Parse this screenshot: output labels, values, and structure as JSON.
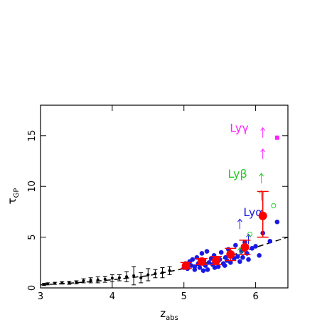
{
  "chart_data": {
    "type": "scatter",
    "xlabel": {
      "main": "z",
      "sub": "abs"
    },
    "ylabel": {
      "main": "τ",
      "sub": "GP"
    },
    "xlim": [
      3,
      6.45
    ],
    "ylim": [
      0,
      18
    ],
    "xticks": [
      3,
      4,
      5,
      6
    ],
    "yticks": [
      0,
      5,
      10,
      15
    ],
    "series": [
      {
        "marker": "line",
        "style": "dashed",
        "color": "#000000",
        "x": [
          3,
          3.5,
          4,
          4.5,
          5,
          5.5,
          6,
          6.45
        ],
        "values": [
          0.3,
          0.5,
          0.8,
          1.2,
          1.9,
          2.8,
          4.0,
          5.0
        ]
      },
      {
        "marker": "dot",
        "color": "#000000",
        "x": [
          3.05,
          3.1,
          3.2,
          3.3,
          3.4,
          3.5,
          3.6,
          3.7,
          3.8,
          3.9,
          4.0,
          4.1,
          4.2,
          4.3,
          4.4,
          4.5,
          4.6,
          4.7,
          4.8
        ],
        "values": [
          0.35,
          0.4,
          0.45,
          0.5,
          0.5,
          0.55,
          0.7,
          0.75,
          0.8,
          0.85,
          0.95,
          1.0,
          1.1,
          1.2,
          1.0,
          1.3,
          1.4,
          1.5,
          1.7
        ],
        "errors": [
          0.1,
          0.1,
          0.1,
          0.12,
          0.15,
          0.15,
          0.2,
          0.25,
          0.3,
          0.3,
          0.35,
          0.3,
          0.5,
          0.9,
          0.5,
          0.6,
          0.4,
          0.5,
          0.4
        ]
      },
      {
        "name": "Lyα",
        "marker": "circle",
        "color": "#1a1ae6",
        "x": [
          5.0,
          5.02,
          5.05,
          5.08,
          5.1,
          5.12,
          5.15,
          5.18,
          5.2,
          5.22,
          5.25,
          5.28,
          5.3,
          5.32,
          5.35,
          5.38,
          5.4,
          5.42,
          5.45,
          5.48,
          5.5,
          5.52,
          5.55,
          5.58,
          5.6,
          5.62,
          5.65,
          5.68,
          5.7,
          5.72,
          5.75,
          5.78,
          5.8,
          5.82,
          5.85,
          5.88,
          5.9,
          5.95,
          6.0,
          6.05,
          6.1,
          6.2,
          6.3,
          5.33,
          5.43,
          5.27,
          5.57,
          5.15
        ],
        "values": [
          2.0,
          2.4,
          1.9,
          2.6,
          2.2,
          2.8,
          2.1,
          3.0,
          2.4,
          2.0,
          3.4,
          2.7,
          2.2,
          3.6,
          2.5,
          2.9,
          2.3,
          3.2,
          2.6,
          2.1,
          2.8,
          3.5,
          2.4,
          3.0,
          2.7,
          3.8,
          2.5,
          3.3,
          2.9,
          4.2,
          3.1,
          2.6,
          3.6,
          3.0,
          4.5,
          3.4,
          2.8,
          3.9,
          4.1,
          3.2,
          5.4,
          4.6,
          6.5,
          1.8,
          2.0,
          1.7,
          2.2,
          1.8
        ]
      },
      {
        "marker": "arrow",
        "color": "#1a1ae6",
        "x": [
          5.78,
          5.9,
          6.1
        ],
        "values": [
          5.8,
          4.3,
          6.2
        ]
      },
      {
        "name": "Lyβ",
        "marker": "arrow",
        "color": "#22cc22",
        "x": [
          5.78,
          6.08,
          6.08,
          6.1
        ],
        "values": [
          3.0,
          10.3,
          8.6,
          6.0
        ]
      },
      {
        "marker": "open-circle",
        "color": "#22cc22",
        "x": [
          5.8,
          5.92,
          6.25
        ],
        "values": [
          3.7,
          5.3,
          8.1
        ]
      },
      {
        "name": "Lyγ",
        "marker": "arrow",
        "color": "#ff22ff",
        "x": [
          6.1,
          6.1
        ],
        "values": [
          14.8,
          12.7
        ]
      },
      {
        "marker": "square",
        "color": "#ff22ff",
        "x": [
          6.3
        ],
        "values": [
          14.8
        ]
      },
      {
        "marker": "big-circle",
        "color": "#ff0000",
        "x": [
          5.03,
          5.25,
          5.45,
          5.65,
          5.85,
          6.1
        ],
        "values": [
          2.2,
          2.6,
          2.7,
          3.3,
          4.0,
          7.1
        ],
        "err_low": [
          0.3,
          0.3,
          0.4,
          0.6,
          0.7,
          2.1
        ],
        "err_high": [
          0.3,
          0.3,
          0.4,
          0.6,
          0.7,
          2.4
        ]
      }
    ]
  }
}
